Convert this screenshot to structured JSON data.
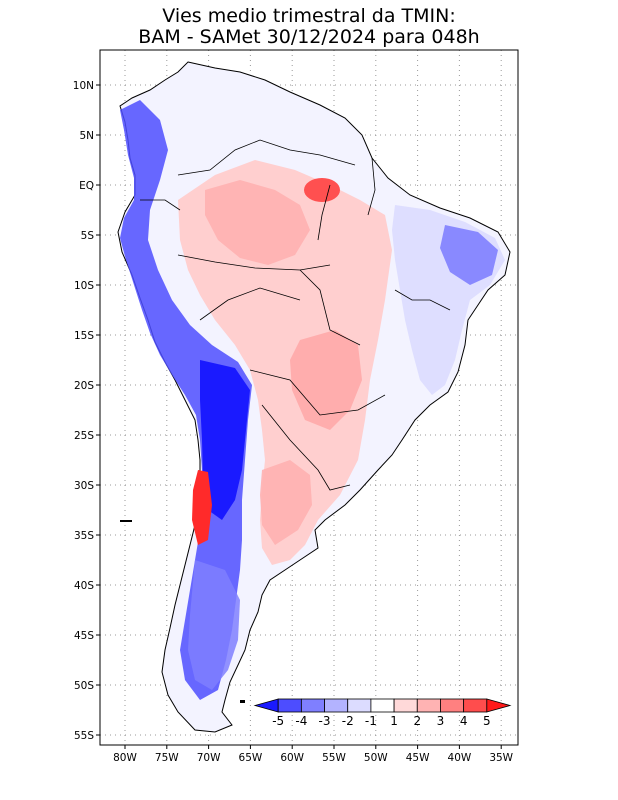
{
  "title": {
    "line1": "Vies medio trimestral da TMIN:",
    "line2": "BAM - SAMet 30/12/2024  para 048h"
  },
  "map": {
    "lon_ticks": [
      "80W",
      "75W",
      "70W",
      "65W",
      "60W",
      "55W",
      "50W",
      "45W",
      "40W",
      "35W"
    ],
    "lat_ticks": [
      "10N",
      "5N",
      "EQ",
      "5S",
      "10S",
      "15S",
      "20S",
      "25S",
      "30S",
      "35S",
      "40S",
      "45S",
      "50S",
      "55S"
    ]
  },
  "colorbar": {
    "labels": [
      "-5",
      "-4",
      "-3",
      "-2",
      "-1",
      "1",
      "2",
      "3",
      "4",
      "5"
    ],
    "colors": [
      "#1a1aff",
      "#4d4dff",
      "#7f7fff",
      "#b3b3ff",
      "#dcdcff",
      "#ffffff",
      "#ffd9d9",
      "#ffb3b3",
      "#ff8080",
      "#ff4d4d",
      "#ff1a1a"
    ]
  }
}
